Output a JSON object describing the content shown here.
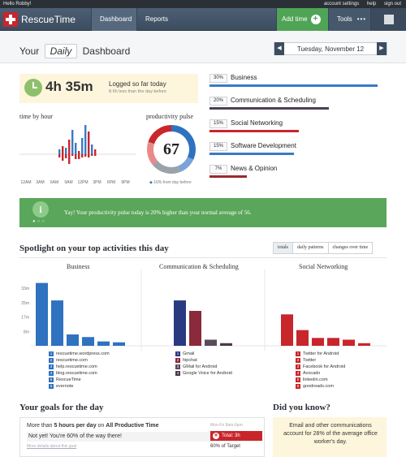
{
  "topbar": {
    "greeting": "Hello Robby!",
    "links": [
      "account settings",
      "help",
      "sign out"
    ]
  },
  "nav": {
    "logo": "RescueTime",
    "dashboard": "Dashboard",
    "reports": "Reports",
    "add_time": "Add time",
    "tools": "Tools",
    "tools_dots": "•••"
  },
  "header": {
    "your": "Your",
    "period": "Daily",
    "dashboard": "Dashboard",
    "date": "Tuesday, November 12",
    "prev": "◀",
    "next": "▶"
  },
  "summary": {
    "time": "4h 35m",
    "label": "Logged so far today",
    "sub": "8.6h less than the day before"
  },
  "hourly": {
    "title": "time by hour",
    "ticks": [
      "12AM",
      "3AM",
      "6AM",
      "9AM",
      "12PM",
      "3PM",
      "6PM",
      "9PM"
    ]
  },
  "pulse": {
    "title": "productivity pulse",
    "value": "67",
    "note": "16% from day before",
    "segments": [
      0.32,
      0.12,
      0.2,
      0.16,
      0.2
    ]
  },
  "categories": [
    {
      "pct": "30%",
      "name": "Business",
      "fraction": 0.9,
      "color": "#3a7ac4"
    },
    {
      "pct": "20%",
      "name": "Communication & Scheduling",
      "fraction": 0.64,
      "color": "#4a3f55"
    },
    {
      "pct": "15%",
      "name": "Social Networking",
      "fraction": 0.48,
      "color": "#c8262b"
    },
    {
      "pct": "15%",
      "name": "Software Development",
      "fraction": 0.45,
      "color": "#3a7ac4"
    },
    {
      "pct": "7%",
      "name": "News & Opinion",
      "fraction": 0.2,
      "color": "#9a2a2f"
    }
  ],
  "banner": {
    "icon": "i",
    "dots": "●○○",
    "message": "Yay! Your productivity pulse today is 20% higher than your normal average of 56."
  },
  "spotlight": {
    "title": "Spotlight on your top activities this day",
    "tabs": [
      "totals",
      "daily patterns",
      "changes over time"
    ],
    "y_ticks": [
      "33m",
      "25m",
      "17m",
      "8m"
    ],
    "columns": [
      {
        "title": "Business",
        "color": "#2f72c0",
        "items": [
          "rescuetime.wordpress.com",
          "rescuetime.com",
          "help.rescuetime.com",
          "blog.rescuetime.com",
          "RescueTime",
          "evernote"
        ],
        "values": [
          36,
          26,
          6.5,
          5,
          2.5,
          2
        ]
      },
      {
        "title": "Communication & Scheduling",
        "color": "#3d3a5a",
        "colors": [
          "#2a3a80",
          "#8a2a3a",
          "#5a4a5a",
          "#4a3a4a"
        ],
        "items": [
          "Gmail",
          "hipchat",
          "GMail for Android",
          "Google Voice for Android"
        ],
        "values": [
          26,
          20,
          3.5,
          1.5
        ]
      },
      {
        "title": "Social Networking",
        "color": "#c8262b",
        "items": [
          "Twitter for Android",
          "Twitter",
          "Facebook for Android",
          "Avocado",
          "linkedin.com",
          "goodreads.com"
        ],
        "values": [
          18,
          9,
          4.5,
          4.5,
          3.5,
          1.5
        ]
      }
    ]
  },
  "goals": {
    "title": "Your goals for the day",
    "line1a": "More than ",
    "line1b": "5 hours per day",
    "line1c": " on ",
    "line1d": "All Productive Time",
    "line2": "Not yet! You're 60% of the way there!",
    "more": "More details about this goal",
    "range": "Mon-Fri 8am-6pm",
    "total": "Total: 3h",
    "target": "60% of Target"
  },
  "didyouknow": {
    "title": "Did you know?",
    "text": "Email and other communications account for 28% of the average office worker's day."
  }
}
